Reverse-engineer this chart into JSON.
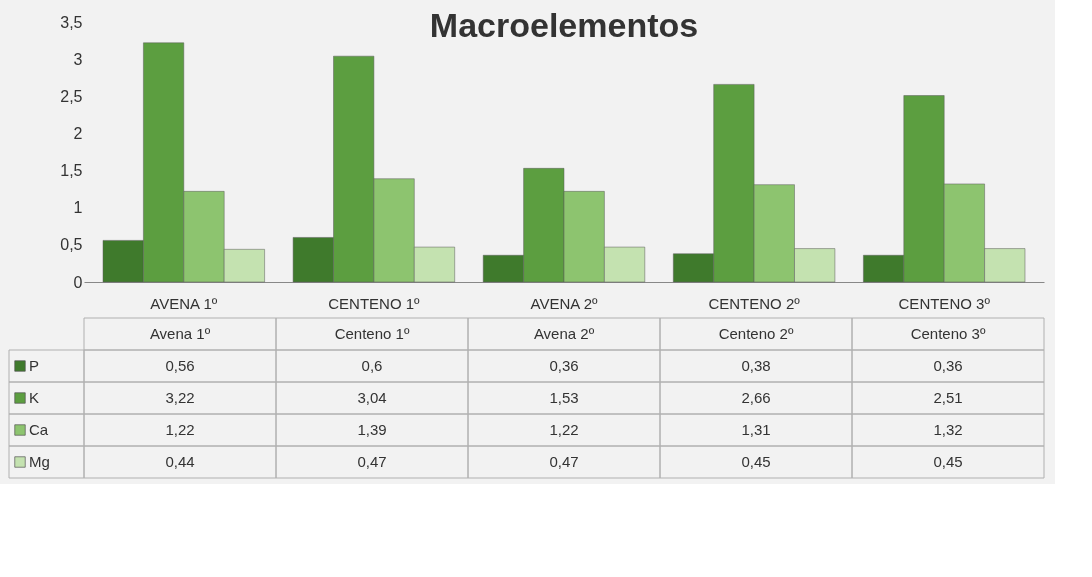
{
  "chart_data": {
    "type": "bar",
    "title": "Macroelementos",
    "categories": [
      "AVENA 1º",
      "CENTENO 1º",
      "AVENA 2º",
      "CENTENO 2º",
      "CENTENO 3º"
    ],
    "series": [
      {
        "name": "P",
        "color": "#3f7a2c",
        "values": [
          0.56,
          0.6,
          0.36,
          0.38,
          0.36
        ],
        "value_labels": [
          "0,56",
          "0,6",
          "0,36",
          "0,38",
          "0,36"
        ]
      },
      {
        "name": "K",
        "color": "#5c9e40",
        "values": [
          3.22,
          3.04,
          1.53,
          2.66,
          2.51
        ],
        "value_labels": [
          "3,22",
          "3,04",
          "1,53",
          "2,66",
          "2,51"
        ]
      },
      {
        "name": "Ca",
        "color": "#8dc46f",
        "values": [
          1.22,
          1.39,
          1.22,
          1.31,
          1.32
        ],
        "value_labels": [
          "1,22",
          "1,39",
          "1,22",
          "1,31",
          "1,32"
        ]
      },
      {
        "name": "Mg",
        "color": "#c4e2b0",
        "values": [
          0.44,
          0.47,
          0.47,
          0.45,
          0.45
        ],
        "value_labels": [
          "0,44",
          "0,47",
          "0,47",
          "0,45",
          "0,45"
        ]
      }
    ],
    "ylim": [
      0,
      3.5
    ],
    "yticks": [
      0,
      {
        "value": 0.5,
        "label": "0,5"
      },
      1,
      {
        "value": 1.5,
        "label": "1,5"
      },
      2,
      {
        "value": 2.5,
        "label": "2,5"
      },
      3,
      {
        "value": 3.5,
        "label": "3,5"
      }
    ],
    "grid": false,
    "legend": "bottom left",
    "annotations": [
      "Avena 1º",
      "Centeno 1º",
      "Avena 2º",
      "Centeno 2º",
      "Centeno 3º"
    ]
  }
}
